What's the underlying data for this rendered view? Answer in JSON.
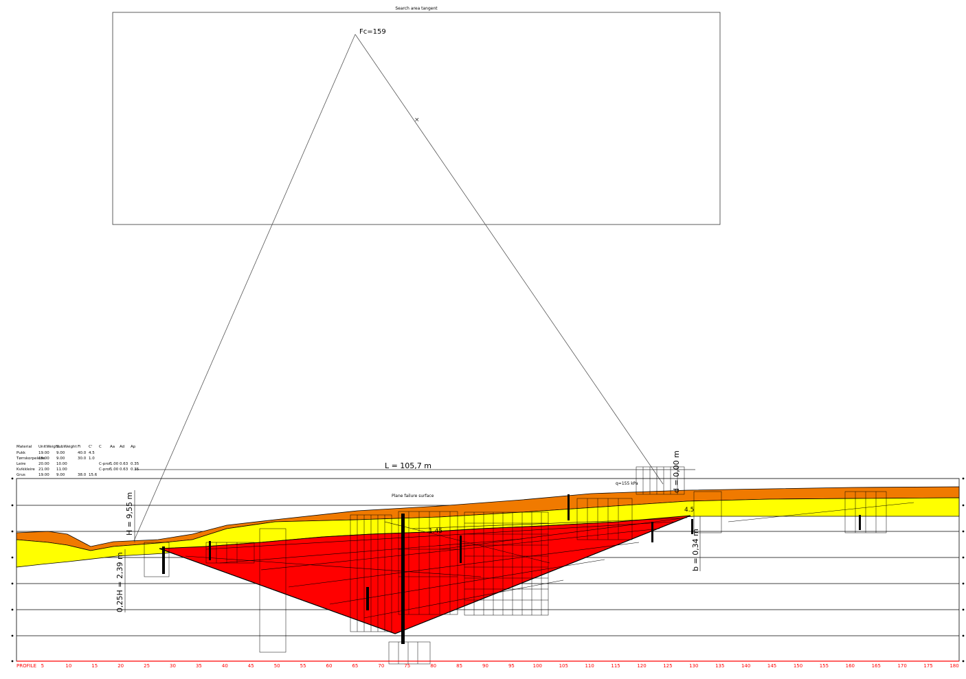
{
  "search_area": {
    "title": "Search area tangent",
    "fc_label": "Fc=159"
  },
  "dimensions": {
    "length_label": "L = 105,7 m",
    "height_label": "H = 9,55 m",
    "quarter_height_label": "0,25H = 2,39 m",
    "b_label": "b = 0,34 m",
    "d_label": "d = 0,00 m"
  },
  "load_label": "q=155 kPa",
  "plane_label": "Plane failure surface",
  "point_labels": [
    "4.5",
    "1.45"
  ],
  "materials_table": {
    "headers": [
      "Material",
      "UnitWeight",
      "SubWeight",
      "Fi",
      "C'",
      "C",
      "Aa",
      "Ad",
      "Ap"
    ],
    "rows": [
      [
        "Pukk",
        "19.00",
        "9.00",
        "40.0",
        "4.5",
        "",
        "",
        "",
        ""
      ],
      [
        "Tørrskorpeleire",
        "19.00",
        "9.00",
        "30.0",
        "1.0",
        "",
        "",
        "",
        ""
      ],
      [
        "Leire",
        "20.00",
        "10.00",
        "",
        "",
        "C-prof",
        "1.00",
        "0.63",
        "0.35"
      ],
      [
        "Kvikkleire",
        "21.00",
        "11.00",
        "",
        "",
        "C-prof",
        "1.00",
        "0.63",
        "0.35"
      ],
      [
        "Grus",
        "19.00",
        "9.00",
        "38.0",
        "15.6",
        "",
        "",
        "",
        ""
      ]
    ]
  },
  "axis": {
    "profile_label": "PROFILE",
    "ticks": [
      "5",
      "10",
      "15",
      "20",
      "25",
      "30",
      "35",
      "40",
      "45",
      "50",
      "55",
      "60",
      "65",
      "70",
      "75",
      "80",
      "85",
      "90",
      "95",
      "100",
      "105",
      "110",
      "115",
      "120",
      "125",
      "130",
      "135",
      "140",
      "145",
      "150",
      "155",
      "160",
      "165",
      "170",
      "175",
      "180"
    ]
  },
  "colors": {
    "red": "#ff0000",
    "yellow": "#ffff00",
    "orange": "#f07a00",
    "axis_red": "#ff0000",
    "line": "#000000"
  }
}
